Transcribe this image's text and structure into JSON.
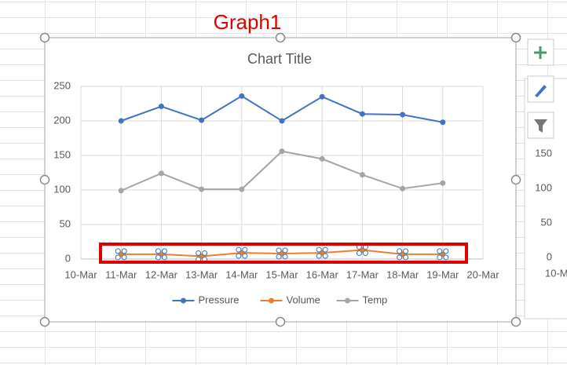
{
  "annotation": "Graph1",
  "chart_data": {
    "type": "line",
    "title": "Chart Title",
    "x": [
      "11-Mar",
      "12-Mar",
      "13-Mar",
      "14-Mar",
      "15-Mar",
      "16-Mar",
      "17-Mar",
      "18-Mar",
      "19-Mar"
    ],
    "xticks": [
      "10-Mar",
      "11-Mar",
      "12-Mar",
      "13-Mar",
      "14-Mar",
      "15-Mar",
      "16-Mar",
      "17-Mar",
      "18-Mar",
      "19-Mar",
      "20-Mar"
    ],
    "series": [
      {
        "name": "Pressure",
        "color": "#4472c4",
        "values": [
          200,
          221,
          201,
          236,
          200,
          235,
          210,
          209,
          198
        ]
      },
      {
        "name": "Volume",
        "color": "#ed7d31",
        "values": [
          7,
          7,
          4,
          9,
          8,
          9,
          13,
          7,
          7
        ]
      },
      {
        "name": "Temp",
        "color": "#a5a5a5",
        "values": [
          99,
          124,
          101,
          101,
          156,
          145,
          122,
          102,
          110
        ]
      }
    ],
    "ylim": [
      0,
      250
    ],
    "yticks": [
      0,
      50,
      100,
      150,
      200,
      250
    ],
    "grid": true,
    "legend": "bottom"
  },
  "side_chart": {
    "yticks": [
      150,
      100,
      50,
      0
    ],
    "x_label": "10-M"
  }
}
